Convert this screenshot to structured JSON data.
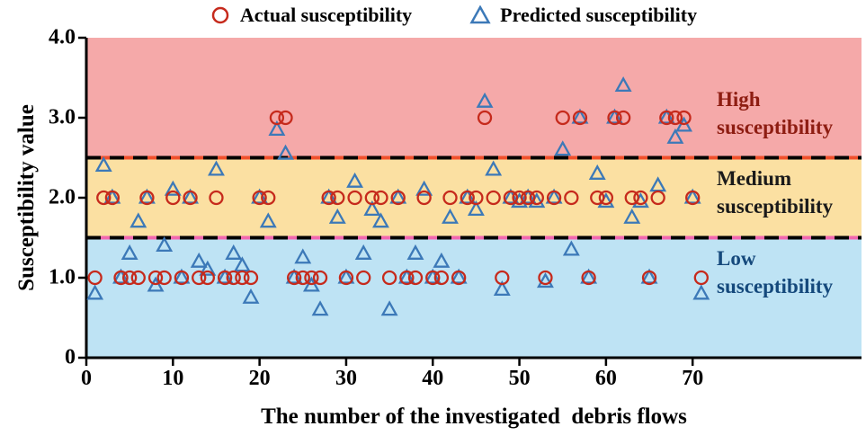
{
  "chart_data": {
    "type": "scatter",
    "title": "",
    "xlabel": "The number of the investigated  debris flows",
    "ylabel": "Susceptibility value",
    "xlim": [
      0,
      89.5
    ],
    "ylim": [
      0,
      4
    ],
    "xticks": [
      0,
      10,
      20,
      30,
      40,
      50,
      60,
      70
    ],
    "yticks": [
      {
        "v": 0,
        "label": "0"
      },
      {
        "v": 1,
        "label": "1.0"
      },
      {
        "v": 2,
        "label": "2.0"
      },
      {
        "v": 3,
        "label": "3.0"
      },
      {
        "v": 4,
        "label": "4.0"
      }
    ],
    "legend_position": "top",
    "grid": false,
    "x": [
      1,
      2,
      3,
      4,
      5,
      6,
      7,
      8,
      9,
      10,
      11,
      12,
      13,
      14,
      15,
      16,
      17,
      18,
      19,
      20,
      21,
      22,
      23,
      24,
      25,
      26,
      27,
      28,
      29,
      30,
      31,
      32,
      33,
      34,
      35,
      36,
      37,
      38,
      39,
      40,
      41,
      42,
      43,
      44,
      45,
      46,
      47,
      48,
      49,
      50,
      51,
      52,
      53,
      54,
      55,
      56,
      57,
      58,
      59,
      60,
      61,
      62,
      63,
      64,
      65,
      66,
      67,
      68,
      69,
      70,
      71
    ],
    "series": [
      {
        "name": "Actual susceptibility",
        "marker": "circle",
        "color": "#c62a1c",
        "values": [
          1,
          2,
          2,
          1,
          1,
          1,
          2,
          1,
          1,
          2,
          1,
          2,
          1,
          1,
          2,
          1,
          1,
          1,
          1,
          2,
          2,
          3,
          3,
          1,
          1,
          1,
          1,
          2,
          2,
          1,
          2,
          1,
          2,
          2,
          1,
          2,
          1,
          1,
          2,
          1,
          1,
          2,
          1,
          2,
          2,
          3,
          2,
          1,
          2,
          2,
          2,
          2,
          1,
          2,
          3,
          2,
          3,
          1,
          2,
          2,
          3,
          3,
          2,
          2,
          1,
          2,
          3,
          3,
          3,
          2,
          1
        ]
      },
      {
        "name": "Predicted susceptibility",
        "marker": "triangle",
        "color": "#3c79b8",
        "values": [
          0.8,
          2.4,
          2.0,
          1.0,
          1.3,
          1.7,
          2.0,
          0.9,
          1.4,
          2.1,
          1.0,
          2.0,
          1.2,
          1.1,
          2.35,
          1.0,
          1.3,
          1.15,
          0.75,
          2.0,
          1.7,
          2.85,
          2.55,
          1.0,
          1.25,
          0.9,
          0.6,
          2.0,
          1.75,
          1.0,
          2.2,
          1.3,
          1.85,
          1.7,
          0.6,
          2.0,
          1.0,
          1.3,
          2.1,
          1.0,
          1.2,
          1.75,
          1.0,
          2.0,
          1.85,
          3.2,
          2.35,
          0.85,
          2.0,
          1.95,
          2.0,
          1.95,
          0.95,
          2.0,
          2.6,
          1.35,
          3.0,
          1.0,
          2.3,
          1.95,
          3.0,
          3.4,
          1.75,
          1.95,
          1.0,
          2.15,
          3.0,
          2.75,
          2.9,
          2.0,
          0.8
        ]
      }
    ],
    "bands": [
      {
        "name": "high",
        "from": 2.5,
        "to": 4.0,
        "fill": "#f5a9a9",
        "label_lines": [
          "High",
          "susceptibility"
        ],
        "label_color": "#8e1d12"
      },
      {
        "name": "medium",
        "from": 1.5,
        "to": 2.5,
        "fill": "#fbe0a2",
        "label_lines": [
          "Medium",
          "susceptibility"
        ],
        "label_color": "#1a1a1a"
      },
      {
        "name": "low",
        "from": 0,
        "to": 1.5,
        "fill": "#bee3f4",
        "label_lines": [
          "Low",
          "susceptibility"
        ],
        "label_color": "#15497c"
      }
    ],
    "threshold_lines": [
      {
        "y": 2.5,
        "dash_color": "#000000",
        "under_color": "#f0512d"
      },
      {
        "y": 1.5,
        "dash_color": "#000000",
        "under_color": "#f268b0"
      }
    ]
  }
}
